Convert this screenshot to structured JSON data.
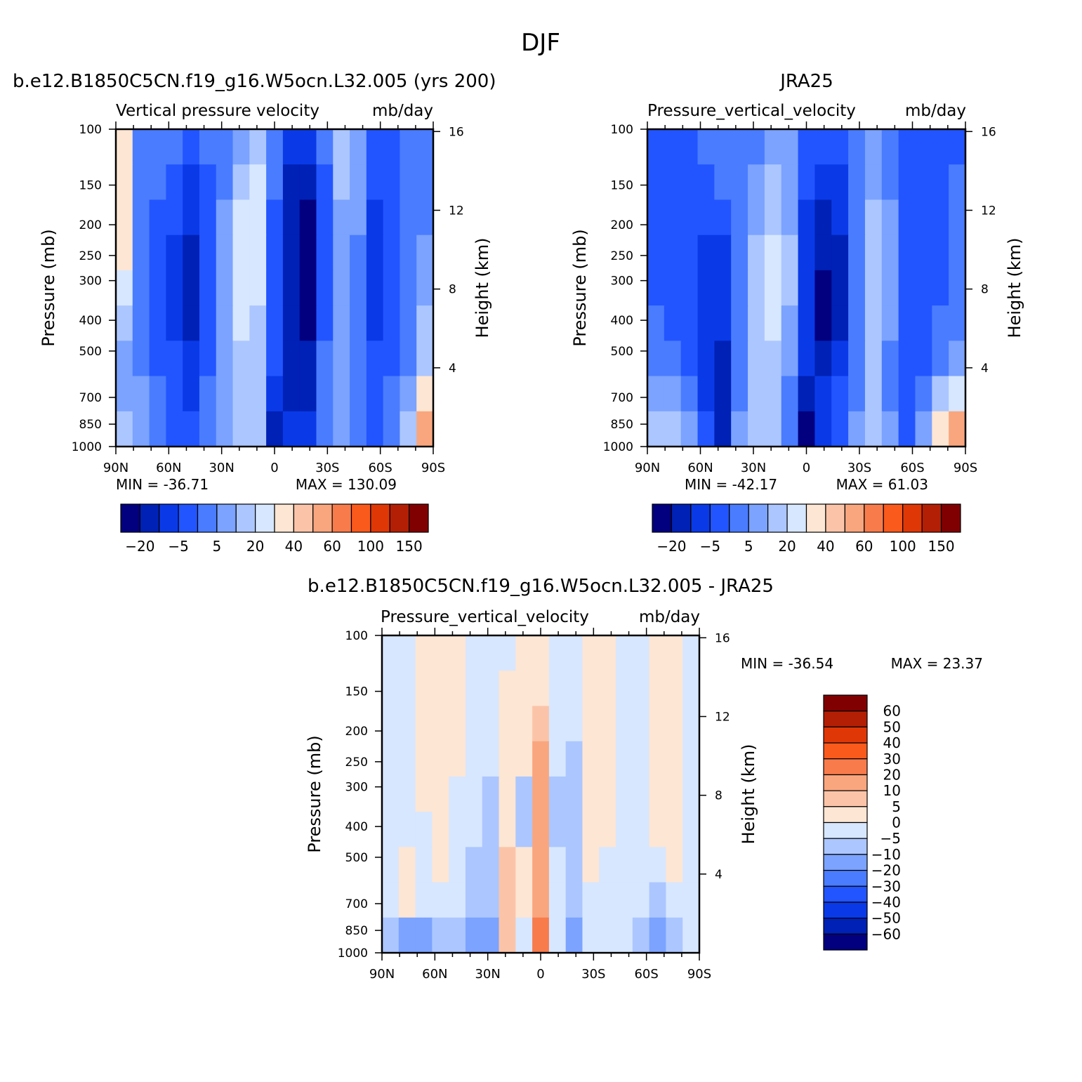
{
  "figure": {
    "title": "DJF"
  },
  "chart_data": [
    {
      "type": "heatmap",
      "case_title": "b.e12.B1850C5CN.f19_g16.W5ocn.L32.005 (yrs 200)",
      "variable": "Vertical pressure velocity",
      "units": "mb/day",
      "ylabel": "Pressure (mb)",
      "ylabel_right": "Height (km)",
      "x_ticks": [
        "90N",
        "60N",
        "30N",
        "0",
        "30S",
        "60S",
        "90S"
      ],
      "y_ticks": [
        100,
        150,
        200,
        250,
        300,
        400,
        500,
        700,
        850,
        1000
      ],
      "height_ticks": [
        16,
        12,
        8,
        4
      ],
      "min_label": "MIN = -36.71",
      "max_label": "MAX = 130.09",
      "min": -36.71,
      "max": 130.09,
      "colorbar_labels": [
        "-20",
        "-5",
        "5",
        "20",
        "40",
        "60",
        "100",
        "150"
      ],
      "colors": [
        "#02007f",
        "#0021b5",
        "#0a3ae8",
        "#2255ff",
        "#4a7cff",
        "#7ba3ff",
        "#acc6ff",
        "#d7e7ff",
        "#fde6d3",
        "#fbc4a8",
        "#f9a67e",
        "#f87b4c",
        "#fb5a1d",
        "#e03707",
        "#b31f04",
        "#800001"
      ],
      "field": [
        [
          8,
          4,
          4,
          4,
          3,
          4,
          4,
          5,
          6,
          4,
          2,
          2,
          4,
          6,
          5,
          3,
          3,
          4,
          4
        ],
        [
          8,
          4,
          4,
          3,
          2,
          3,
          4,
          6,
          7,
          4,
          1,
          1,
          3,
          6,
          5,
          3,
          3,
          4,
          4
        ],
        [
          8,
          4,
          3,
          3,
          2,
          3,
          5,
          7,
          7,
          3,
          1,
          0,
          3,
          5,
          5,
          2,
          3,
          4,
          4
        ],
        [
          8,
          4,
          3,
          2,
          1,
          3,
          5,
          7,
          7,
          3,
          1,
          0,
          3,
          5,
          4,
          2,
          3,
          4,
          5
        ],
        [
          7,
          4,
          3,
          2,
          1,
          3,
          5,
          7,
          7,
          3,
          1,
          0,
          3,
          5,
          4,
          2,
          3,
          4,
          5
        ],
        [
          6,
          4,
          3,
          2,
          1,
          3,
          5,
          7,
          6,
          3,
          1,
          0,
          3,
          5,
          4,
          2,
          3,
          4,
          6
        ],
        [
          5,
          4,
          3,
          3,
          2,
          3,
          5,
          6,
          6,
          3,
          1,
          1,
          4,
          5,
          4,
          3,
          3,
          4,
          6
        ],
        [
          5,
          5,
          4,
          3,
          2,
          4,
          5,
          6,
          6,
          2,
          1,
          1,
          4,
          5,
          4,
          3,
          4,
          5,
          8
        ],
        [
          6,
          5,
          4,
          3,
          3,
          4,
          5,
          6,
          6,
          1,
          2,
          2,
          4,
          5,
          4,
          3,
          4,
          6,
          10
        ]
      ]
    },
    {
      "type": "heatmap",
      "case_title": "JRA25",
      "variable": "Pressure_vertical_velocity",
      "units": "mb/day",
      "ylabel": "Pressure (mb)",
      "ylabel_right": "Height (km)",
      "x_ticks": [
        "90N",
        "60N",
        "30N",
        "0",
        "30S",
        "60S",
        "90S"
      ],
      "y_ticks": [
        100,
        150,
        200,
        250,
        300,
        400,
        500,
        700,
        850,
        1000
      ],
      "height_ticks": [
        16,
        12,
        8,
        4
      ],
      "min_label": "MIN = -42.17",
      "max_label": "MAX = 61.03",
      "min": -42.17,
      "max": 61.03,
      "colorbar_labels": [
        "-20",
        "-5",
        "5",
        "20",
        "40",
        "60",
        "100",
        "150"
      ],
      "colors": [
        "#02007f",
        "#0021b5",
        "#0a3ae8",
        "#2255ff",
        "#4a7cff",
        "#7ba3ff",
        "#acc6ff",
        "#d7e7ff",
        "#fde6d3",
        "#fbc4a8",
        "#f9a67e",
        "#f87b4c",
        "#fb5a1d",
        "#e03707",
        "#b31f04",
        "#800001"
      ],
      "field": [
        [
          3,
          3,
          3,
          4,
          4,
          4,
          4,
          5,
          5,
          3,
          3,
          3,
          4,
          5,
          4,
          3,
          3,
          3,
          3
        ],
        [
          3,
          3,
          3,
          3,
          4,
          4,
          5,
          6,
          5,
          3,
          2,
          2,
          4,
          5,
          4,
          3,
          3,
          3,
          4
        ],
        [
          3,
          3,
          3,
          3,
          3,
          4,
          5,
          6,
          5,
          2,
          1,
          2,
          4,
          6,
          5,
          3,
          3,
          3,
          4
        ],
        [
          3,
          3,
          3,
          2,
          2,
          4,
          6,
          7,
          6,
          2,
          1,
          1,
          4,
          6,
          5,
          3,
          3,
          3,
          4
        ],
        [
          3,
          3,
          3,
          2,
          2,
          4,
          6,
          7,
          6,
          2,
          0,
          1,
          4,
          6,
          5,
          3,
          3,
          3,
          4
        ],
        [
          4,
          3,
          3,
          2,
          2,
          4,
          6,
          7,
          5,
          2,
          0,
          1,
          4,
          6,
          5,
          3,
          3,
          4,
          4
        ],
        [
          4,
          4,
          3,
          2,
          1,
          4,
          6,
          6,
          5,
          2,
          1,
          2,
          4,
          6,
          4,
          3,
          3,
          4,
          5
        ],
        [
          5,
          5,
          4,
          2,
          1,
          4,
          6,
          6,
          4,
          1,
          2,
          3,
          4,
          6,
          4,
          3,
          4,
          6,
          7
        ],
        [
          6,
          6,
          5,
          3,
          1,
          5,
          6,
          6,
          4,
          0,
          2,
          3,
          5,
          6,
          5,
          3,
          5,
          8,
          10
        ]
      ]
    },
    {
      "type": "heatmap",
      "case_title": "b.e12.B1850C5CN.f19_g16.W5ocn.L32.005 - JRA25",
      "variable": "Pressure_vertical_velocity",
      "units": "mb/day",
      "ylabel": "Pressure (mb)",
      "ylabel_right": "Height (km)",
      "x_ticks": [
        "90N",
        "60N",
        "30N",
        "0",
        "30S",
        "60S",
        "90S"
      ],
      "y_ticks": [
        100,
        150,
        200,
        250,
        300,
        400,
        500,
        700,
        850,
        1000
      ],
      "height_ticks": [
        16,
        12,
        8,
        4
      ],
      "min_label": "MIN = -36.54",
      "max_label": "MAX = 23.37",
      "min": -36.54,
      "max": 23.37,
      "colorbar_labels": [
        "60",
        "50",
        "40",
        "30",
        "20",
        "10",
        "5",
        "0",
        "-5",
        "-10",
        "-20",
        "-30",
        "-40",
        "-50",
        "-60"
      ],
      "colors": [
        "#800001",
        "#b31f04",
        "#e03707",
        "#fb5a1d",
        "#f87b4c",
        "#f9a67e",
        "#fbc4a8",
        "#fde6d3",
        "#d7e7ff",
        "#acc6ff",
        "#7ba3ff",
        "#4a7cff",
        "#2255ff",
        "#0a3ae8",
        "#0021b5",
        "#02007f"
      ],
      "field": [
        [
          8,
          8,
          7,
          7,
          7,
          8,
          8,
          8,
          7,
          7,
          8,
          8,
          7,
          7,
          8,
          8,
          7,
          7,
          8
        ],
        [
          8,
          8,
          7,
          7,
          7,
          8,
          8,
          7,
          7,
          7,
          8,
          8,
          7,
          7,
          8,
          8,
          7,
          7,
          8
        ],
        [
          8,
          8,
          7,
          7,
          7,
          8,
          8,
          7,
          7,
          6,
          8,
          8,
          7,
          7,
          8,
          8,
          7,
          7,
          8
        ],
        [
          8,
          8,
          7,
          7,
          7,
          8,
          8,
          7,
          7,
          5,
          8,
          9,
          7,
          7,
          8,
          8,
          7,
          7,
          8
        ],
        [
          8,
          8,
          7,
          7,
          8,
          8,
          9,
          7,
          9,
          5,
          9,
          9,
          7,
          7,
          8,
          8,
          7,
          7,
          8
        ],
        [
          8,
          8,
          8,
          7,
          8,
          8,
          9,
          7,
          9,
          5,
          9,
          9,
          7,
          7,
          8,
          8,
          7,
          7,
          8
        ],
        [
          8,
          7,
          8,
          7,
          8,
          9,
          9,
          6,
          7,
          5,
          8,
          9,
          7,
          8,
          8,
          8,
          8,
          7,
          8
        ],
        [
          8,
          7,
          8,
          8,
          8,
          9,
          9,
          6,
          7,
          5,
          8,
          9,
          8,
          8,
          8,
          8,
          9,
          8,
          8
        ],
        [
          9,
          10,
          10,
          9,
          9,
          10,
          10,
          6,
          8,
          4,
          8,
          10,
          8,
          8,
          8,
          9,
          10,
          9,
          8
        ]
      ]
    }
  ]
}
